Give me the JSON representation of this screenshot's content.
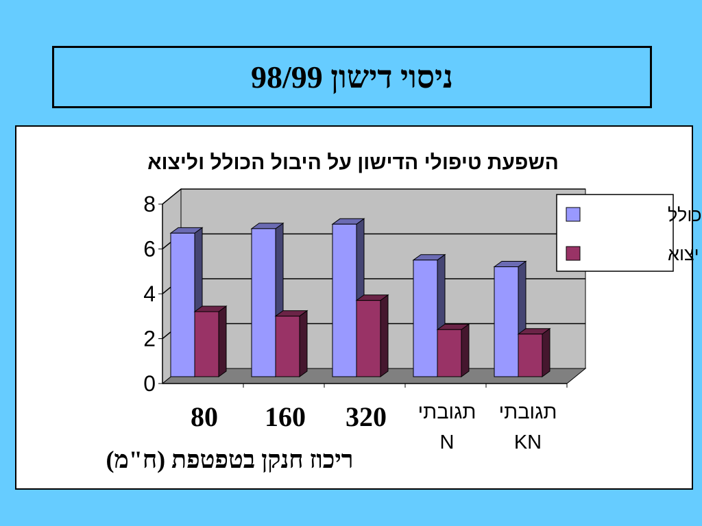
{
  "slide": {
    "title": "ניסוי דישון 98/99"
  },
  "colors": {
    "background": "#66CCFF",
    "series_total": "#9999FF",
    "series_export": "#993366",
    "plot_wall": "#C0C0C0",
    "plot_floor": "#808080"
  },
  "chart_data": {
    "type": "bar",
    "style": "3d-clustered",
    "title": "השפעת טיפולי הדישון על היבול הכולל וליצוא",
    "categories": [
      "80",
      "160",
      "320",
      "תגובתי N",
      "תגובתי KN"
    ],
    "series": [
      {
        "name": "יבול כולל",
        "values": [
          6.4,
          6.6,
          6.8,
          5.2,
          4.9
        ]
      },
      {
        "name": "יבול יצוא",
        "values": [
          2.9,
          2.7,
          3.4,
          2.1,
          1.9
        ]
      }
    ],
    "ylim": [
      0,
      8
    ],
    "yticks": [
      "0",
      "2",
      "4",
      "6",
      "8"
    ],
    "xlabel": "ריכוז חנקן בטפטפת (ח\"מ)",
    "grid": true,
    "legend": "top-right"
  }
}
